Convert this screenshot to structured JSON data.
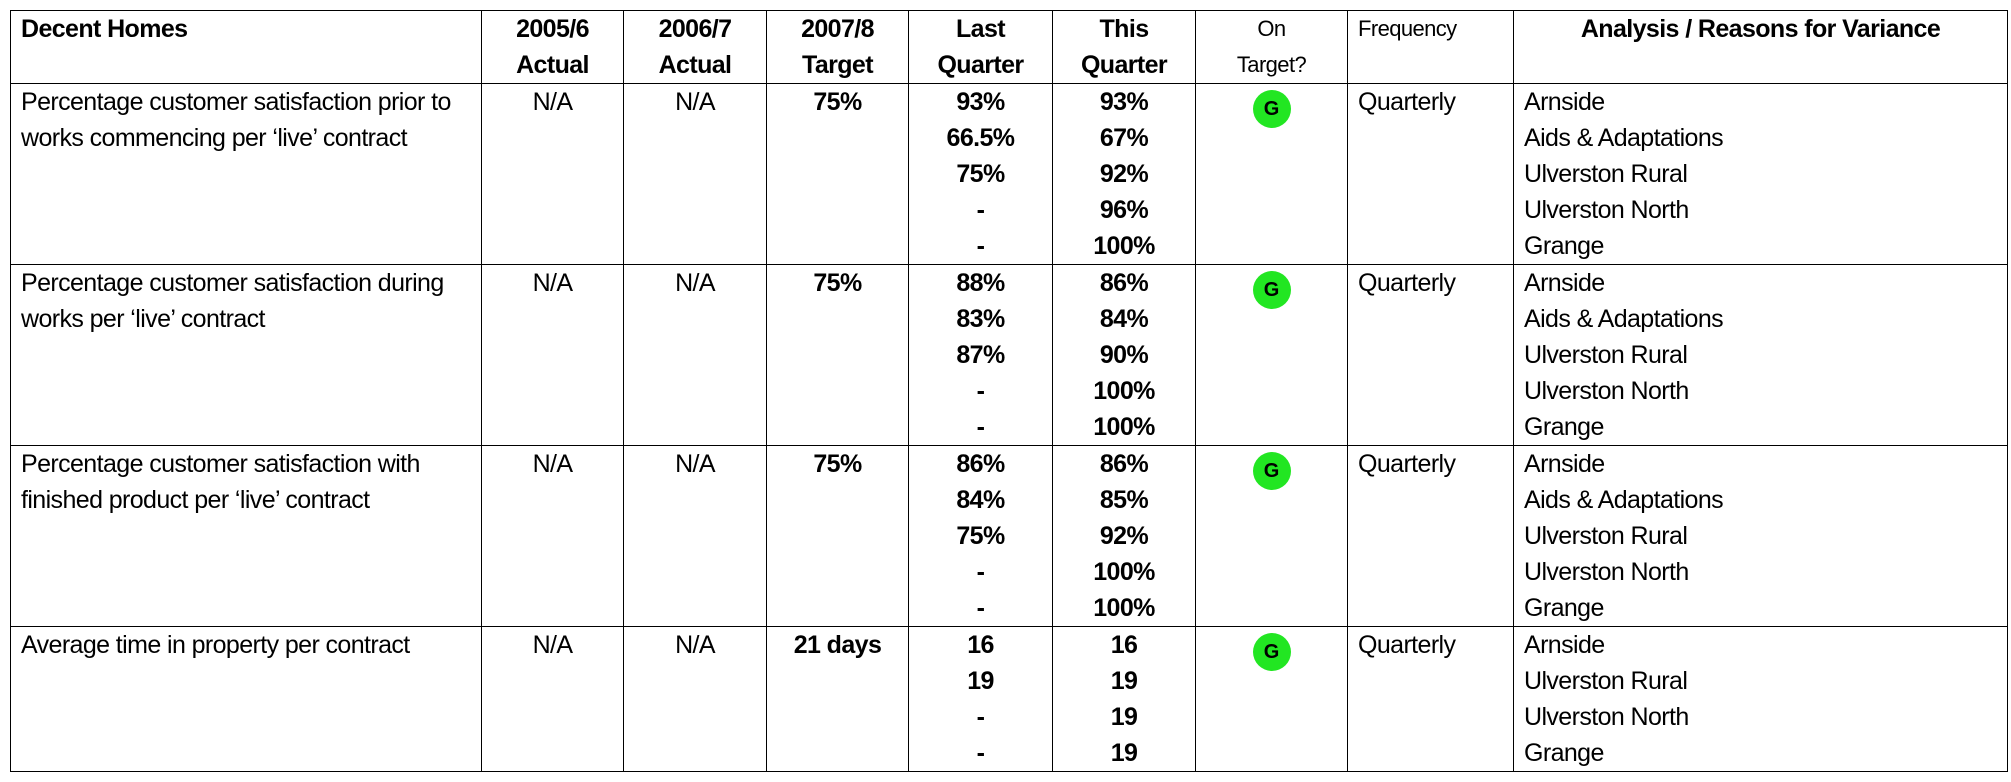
{
  "table": {
    "header": [
      [
        "Decent Homes"
      ],
      [
        "2005/6",
        "Actual"
      ],
      [
        "2006/7",
        "Actual"
      ],
      [
        "2007/8",
        "Target"
      ],
      [
        "Last",
        "Quarter"
      ],
      [
        "This",
        "Quarter"
      ],
      [
        "On",
        "Target?"
      ],
      [
        "Frequency"
      ],
      [
        "Analysis / Reasons for Variance"
      ]
    ],
    "rows": [
      {
        "label": "Percentage customer satisfaction prior to works commencing per ‘live’ contract",
        "actual_2005": "N/A",
        "actual_2006": "N/A",
        "target": "75%",
        "last_quarter": [
          "93%",
          "66.5%",
          "75%",
          "-",
          "-"
        ],
        "this_quarter": [
          "93%",
          "67%",
          "92%",
          "96%",
          "100%"
        ],
        "on_target": "G",
        "frequency": "Quarterly",
        "analysis": [
          "Arnside",
          "Aids & Adaptations",
          "Ulverston Rural",
          "Ulverston North",
          "Grange"
        ]
      },
      {
        "label": "Percentage customer satisfaction during works per ‘live’ contract",
        "actual_2005": "N/A",
        "actual_2006": "N/A",
        "target": "75%",
        "last_quarter": [
          "88%",
          "83%",
          "87%",
          "-",
          "-"
        ],
        "this_quarter": [
          "86%",
          "84%",
          "90%",
          "100%",
          "100%"
        ],
        "on_target": "G",
        "frequency": "Quarterly",
        "analysis": [
          "Arnside",
          "Aids & Adaptations",
          "Ulverston Rural",
          "Ulverston North",
          "Grange"
        ]
      },
      {
        "label": "Percentage customer satisfaction with finished product per ‘live’ contract",
        "actual_2005": "N/A",
        "actual_2006": "N/A",
        "target": "75%",
        "last_quarter": [
          "86%",
          "84%",
          "75%",
          "-",
          "-"
        ],
        "this_quarter": [
          "86%",
          "85%",
          "92%",
          "100%",
          "100%"
        ],
        "on_target": "G",
        "frequency": "Quarterly",
        "analysis": [
          "Arnside",
          "Aids & Adaptations",
          "Ulverston Rural",
          "Ulverston North",
          "Grange"
        ]
      },
      {
        "label": "Average time in property per contract",
        "actual_2005": "N/A",
        "actual_2006": "N/A",
        "target": "21 days",
        "last_quarter": [
          "16",
          "19",
          "-",
          "-"
        ],
        "this_quarter": [
          "16",
          "19",
          "19",
          "19"
        ],
        "on_target": "G",
        "frequency": "Quarterly",
        "analysis": [
          "Arnside",
          "Ulverston Rural",
          "Ulverston North",
          "Grange"
        ]
      }
    ]
  }
}
